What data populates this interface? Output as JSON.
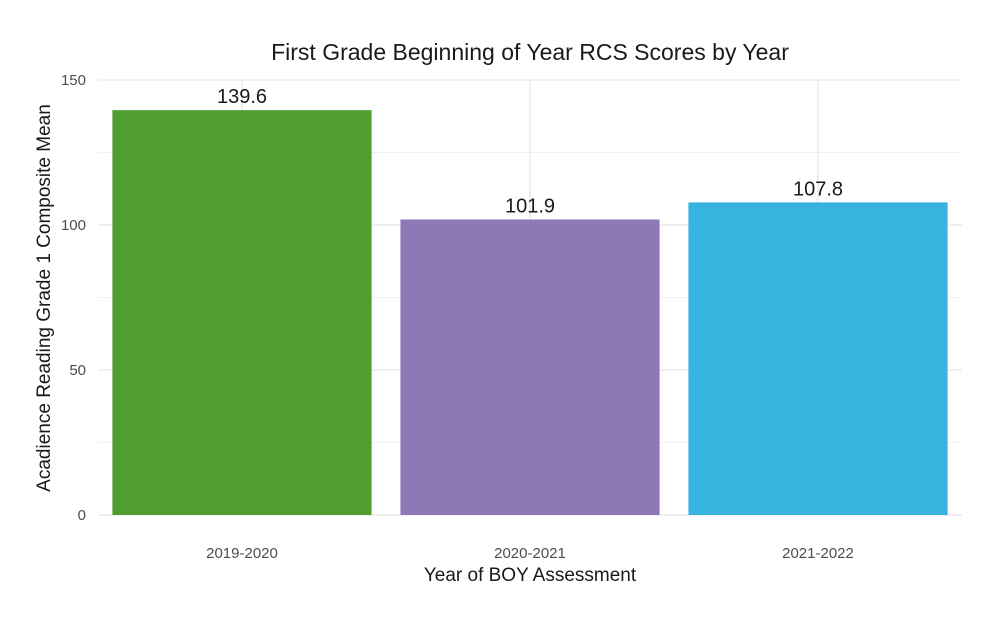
{
  "chart_data": {
    "type": "bar",
    "title": "First Grade Beginning of Year RCS Scores by Year",
    "xlabel": "Year of BOY Assessment",
    "ylabel": "Acadience Reading Grade 1 Composite Mean",
    "categories": [
      "2019-2020",
      "2020-2021",
      "2021-2022"
    ],
    "values": [
      139.6,
      101.9,
      107.8
    ],
    "data_labels": [
      "139.6",
      "101.9",
      "107.8"
    ],
    "colors": [
      "#4f9e2f",
      "#8e78b5",
      "#38b3e0"
    ],
    "ylim": [
      0,
      150
    ],
    "yticks": [
      0,
      50,
      100,
      150
    ],
    "ytick_labels": [
      "0",
      "50",
      "100",
      "150"
    ],
    "grid": true,
    "legend": "none"
  }
}
